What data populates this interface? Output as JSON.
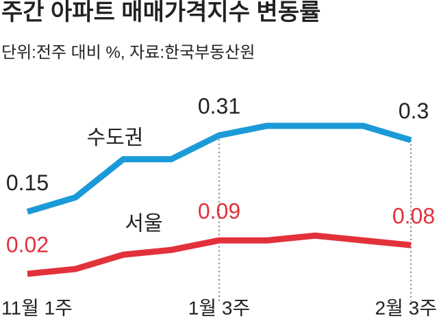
{
  "chart_data": {
    "type": "line",
    "title": "주간 아파트 매매가격지수 변동률",
    "subtitle": "단위:전주 대비 %, 자료:한국부동산원",
    "categories": [
      "11월 1주",
      null,
      null,
      null,
      "1월 3주",
      null,
      null,
      null,
      "2월 3주"
    ],
    "series": [
      {
        "name": "수도권",
        "color": "#1b9ad8",
        "values": [
          0.15,
          0.18,
          0.26,
          0.26,
          0.31,
          0.33,
          0.33,
          0.33,
          0.3
        ]
      },
      {
        "name": "서울",
        "color": "#e2313b",
        "values": [
          0.02,
          0.03,
          0.06,
          0.07,
          0.09,
          0.09,
          0.1,
          0.09,
          0.08
        ]
      }
    ],
    "ylim": [
      0,
      0.4
    ]
  }
}
